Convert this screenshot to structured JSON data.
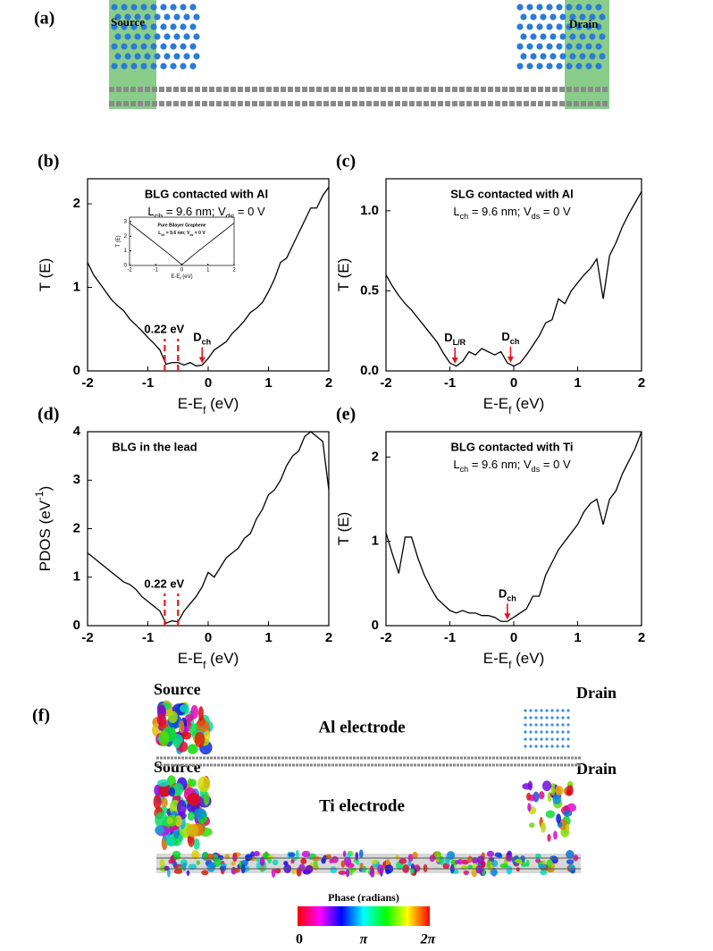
{
  "panel_a": {
    "label": "(a)",
    "source": "Source",
    "drain": "Drain"
  },
  "chart_data": [
    {
      "type": "line",
      "label": "(b)",
      "title": "BLG contacted with Al",
      "subtitle": [
        "L",
        {
          "sub": "ch"
        },
        " = 9.6 nm; V",
        {
          "sub": "ds"
        },
        " = 0 V"
      ],
      "xlabel": [
        "E-E",
        {
          "sub": "f"
        },
        " (eV)"
      ],
      "ylabel": [
        "T (E)"
      ],
      "x": [
        -2,
        -1.9,
        -1.8,
        -1.7,
        -1.6,
        -1.5,
        -1.4,
        -1.3,
        -1.2,
        -1.1,
        -1,
        -0.9,
        -0.8,
        -0.7,
        -0.6,
        -0.5,
        -0.4,
        -0.3,
        -0.2,
        -0.1,
        0,
        0.1,
        0.2,
        0.3,
        0.4,
        0.5,
        0.6,
        0.7,
        0.8,
        0.9,
        1,
        1.1,
        1.2,
        1.3,
        1.4,
        1.5,
        1.6,
        1.7,
        1.8,
        1.9,
        2
      ],
      "series": [
        {
          "color": "#000000",
          "values": [
            1.3,
            1.15,
            1.05,
            0.95,
            0.85,
            0.78,
            0.72,
            0.62,
            0.55,
            0.48,
            0.4,
            0.33,
            0.25,
            0.08,
            0.1,
            0.1,
            0.07,
            0.1,
            0.06,
            0.07,
            0.15,
            0.25,
            0.3,
            0.35,
            0.45,
            0.52,
            0.6,
            0.7,
            0.75,
            0.82,
            0.95,
            1.1,
            1.3,
            1.35,
            1.5,
            1.65,
            1.8,
            1.95,
            1.95,
            2.1,
            2.2
          ]
        }
      ],
      "xlim": [
        -2,
        2
      ],
      "ylim": [
        0,
        2.3
      ],
      "xticks": [
        -2,
        -1,
        0,
        1,
        2
      ],
      "yticks": [
        0,
        1,
        2
      ],
      "marker_color": "#e8141b",
      "gap": {
        "x": [
          -0.72,
          -0.5
        ],
        "label": "0.22 eV"
      },
      "arrows": [
        {
          "x": -0.1,
          "label": [
            "D",
            {
              "sub": "ch"
            }
          ]
        }
      ]
    },
    {
      "type": "line",
      "title": "Pure Bilayer Graphene",
      "subtitle": [
        "L",
        {
          "sub": "ch"
        },
        " = 9.6 nm; V",
        {
          "sub": "ds"
        },
        " = 0 V"
      ],
      "xlabel": [
        "E-E",
        {
          "sub": "f"
        },
        " (eV)"
      ],
      "ylabel": [
        "T (E)"
      ],
      "x": [
        -2,
        -1.5,
        -1,
        -0.5,
        0,
        0.5,
        1,
        1.5,
        2
      ],
      "series": [
        {
          "color": "#000000",
          "values": [
            2.9,
            2.2,
            1.5,
            0.8,
            0.05,
            0.8,
            1.5,
            2.2,
            2.9
          ]
        }
      ],
      "xlim": [
        -2,
        2
      ],
      "ylim": [
        0,
        3.3
      ],
      "xticks": [
        -2,
        -1,
        0,
        1,
        2
      ],
      "yticks": [
        0,
        1,
        2,
        3
      ]
    },
    {
      "type": "line",
      "label": "(c)",
      "title": "SLG contacted with Al",
      "subtitle": [
        "L",
        {
          "sub": "ch"
        },
        " = 9.6 nm; V",
        {
          "sub": "ds"
        },
        " = 0 V"
      ],
      "xlabel": [
        "E-E",
        {
          "sub": "f"
        },
        " (eV)"
      ],
      "ylabel": [
        "T (E)"
      ],
      "x": [
        -2,
        -1.9,
        -1.8,
        -1.7,
        -1.6,
        -1.5,
        -1.4,
        -1.3,
        -1.2,
        -1.1,
        -1,
        -0.9,
        -0.8,
        -0.7,
        -0.6,
        -0.5,
        -0.4,
        -0.3,
        -0.2,
        -0.1,
        0,
        0.1,
        0.2,
        0.3,
        0.4,
        0.5,
        0.6,
        0.7,
        0.8,
        0.9,
        1,
        1.1,
        1.2,
        1.3,
        1.4,
        1.5,
        1.6,
        1.7,
        1.8,
        1.9,
        2
      ],
      "series": [
        {
          "color": "#000000",
          "values": [
            0.6,
            0.53,
            0.47,
            0.42,
            0.38,
            0.33,
            0.28,
            0.23,
            0.18,
            0.11,
            0.05,
            0.03,
            0.06,
            0.12,
            0.1,
            0.14,
            0.12,
            0.1,
            0.12,
            0.05,
            0.03,
            0.05,
            0.1,
            0.16,
            0.22,
            0.3,
            0.32,
            0.45,
            0.42,
            0.5,
            0.55,
            0.6,
            0.64,
            0.7,
            0.45,
            0.72,
            0.8,
            0.9,
            0.98,
            1.05,
            1.12
          ]
        }
      ],
      "xlim": [
        -2,
        2
      ],
      "ylim": [
        0,
        1.2
      ],
      "xticks": [
        -2,
        -1,
        0,
        1,
        2
      ],
      "yticks": [
        {
          "value": 0,
          "label": "0.0"
        },
        {
          "value": 0.5,
          "label": "0.5"
        },
        {
          "value": 1,
          "label": "1.0"
        }
      ],
      "marker_color": "#e8141b",
      "arrows": [
        {
          "x": -0.92,
          "label": [
            "D",
            {
              "sub": "L/R"
            }
          ]
        },
        {
          "x": -0.05,
          "label": [
            "D",
            {
              "sub": "ch"
            }
          ]
        }
      ]
    },
    {
      "type": "line",
      "label": "(d)",
      "title": "BLG in the lead",
      "xlabel": [
        "E-E",
        {
          "sub": "f"
        },
        " (eV)"
      ],
      "ylabel": [
        "PDOS (eV",
        {
          "sup": "-1"
        },
        ")"
      ],
      "x": [
        -2,
        -1.9,
        -1.8,
        -1.7,
        -1.6,
        -1.5,
        -1.4,
        -1.3,
        -1.2,
        -1.1,
        -1,
        -0.9,
        -0.8,
        -0.7,
        -0.6,
        -0.5,
        -0.4,
        -0.3,
        -0.2,
        -0.1,
        0,
        0.1,
        0.2,
        0.3,
        0.4,
        0.5,
        0.6,
        0.7,
        0.8,
        0.9,
        1,
        1.1,
        1.2,
        1.3,
        1.4,
        1.5,
        1.6,
        1.7,
        1.8,
        1.9,
        2
      ],
      "series": [
        {
          "color": "#000000",
          "values": [
            1.5,
            1.4,
            1.3,
            1.2,
            1.1,
            1,
            0.9,
            0.85,
            0.75,
            0.6,
            0.5,
            0.4,
            0.3,
            0.05,
            0.1,
            0.08,
            0.3,
            0.45,
            0.6,
            0.8,
            1.1,
            1,
            1.2,
            1.4,
            1.5,
            1.6,
            1.8,
            1.9,
            2.2,
            2.4,
            2.7,
            2.8,
            3,
            3.3,
            3.5,
            3.6,
            3.9,
            4,
            3.9,
            3.8,
            2.8
          ]
        }
      ],
      "xlim": [
        -2,
        2
      ],
      "ylim": [
        0,
        4
      ],
      "xticks": [
        -2,
        -1,
        0,
        1,
        2
      ],
      "yticks": [
        0,
        1,
        2,
        3,
        4
      ],
      "marker_color": "#e8141b",
      "gap": {
        "x": [
          -0.72,
          -0.5
        ],
        "label": "0.22 eV"
      }
    },
    {
      "type": "line",
      "label": "(e)",
      "title": "BLG contacted with Ti",
      "subtitle": [
        "L",
        {
          "sub": "ch"
        },
        " = 9.6 nm; V",
        {
          "sub": "ds"
        },
        " = 0 V"
      ],
      "xlabel": [
        "E-E",
        {
          "sub": "f"
        },
        " (eV)"
      ],
      "ylabel": [
        "T (E)"
      ],
      "x": [
        -2,
        -1.9,
        -1.8,
        -1.7,
        -1.6,
        -1.5,
        -1.4,
        -1.3,
        -1.2,
        -1.1,
        -1,
        -0.9,
        -0.8,
        -0.7,
        -0.6,
        -0.5,
        -0.4,
        -0.3,
        -0.2,
        -0.1,
        0,
        0.1,
        0.2,
        0.3,
        0.4,
        0.5,
        0.6,
        0.7,
        0.8,
        0.9,
        1,
        1.1,
        1.2,
        1.3,
        1.4,
        1.5,
        1.6,
        1.7,
        1.8,
        1.9,
        2
      ],
      "series": [
        {
          "color": "#000000",
          "values": [
            1.1,
            0.85,
            0.62,
            1.05,
            1.05,
            0.8,
            0.6,
            0.45,
            0.32,
            0.25,
            0.18,
            0.15,
            0.18,
            0.15,
            0.15,
            0.12,
            0.12,
            0.1,
            0.05,
            0.05,
            0.1,
            0.15,
            0.2,
            0.35,
            0.35,
            0.6,
            0.75,
            0.9,
            1,
            1.1,
            1.2,
            1.35,
            1.45,
            1.5,
            1.2,
            1.5,
            1.6,
            1.8,
            1.95,
            2.1,
            2.3
          ]
        }
      ],
      "xlim": [
        -2,
        2
      ],
      "ylim": [
        0,
        2.3
      ],
      "xticks": [
        -2,
        -1,
        0,
        1,
        2
      ],
      "yticks": [
        0,
        1,
        2
      ],
      "marker_color": "#e8141b",
      "arrows": [
        {
          "x": -0.1,
          "label": [
            "D",
            {
              "sub": "ch"
            }
          ]
        }
      ]
    }
  ],
  "panel_f": {
    "label": "(f)",
    "rows": [
      {
        "source": "Source",
        "drain": "Drain",
        "electrode": "Al electrode"
      },
      {
        "source": "Source",
        "drain": "Drain",
        "electrode": "Ti electrode"
      }
    ],
    "colorbar": {
      "title": "Phase (radians)",
      "ticks": [
        "0",
        "π",
        "2π"
      ]
    }
  }
}
